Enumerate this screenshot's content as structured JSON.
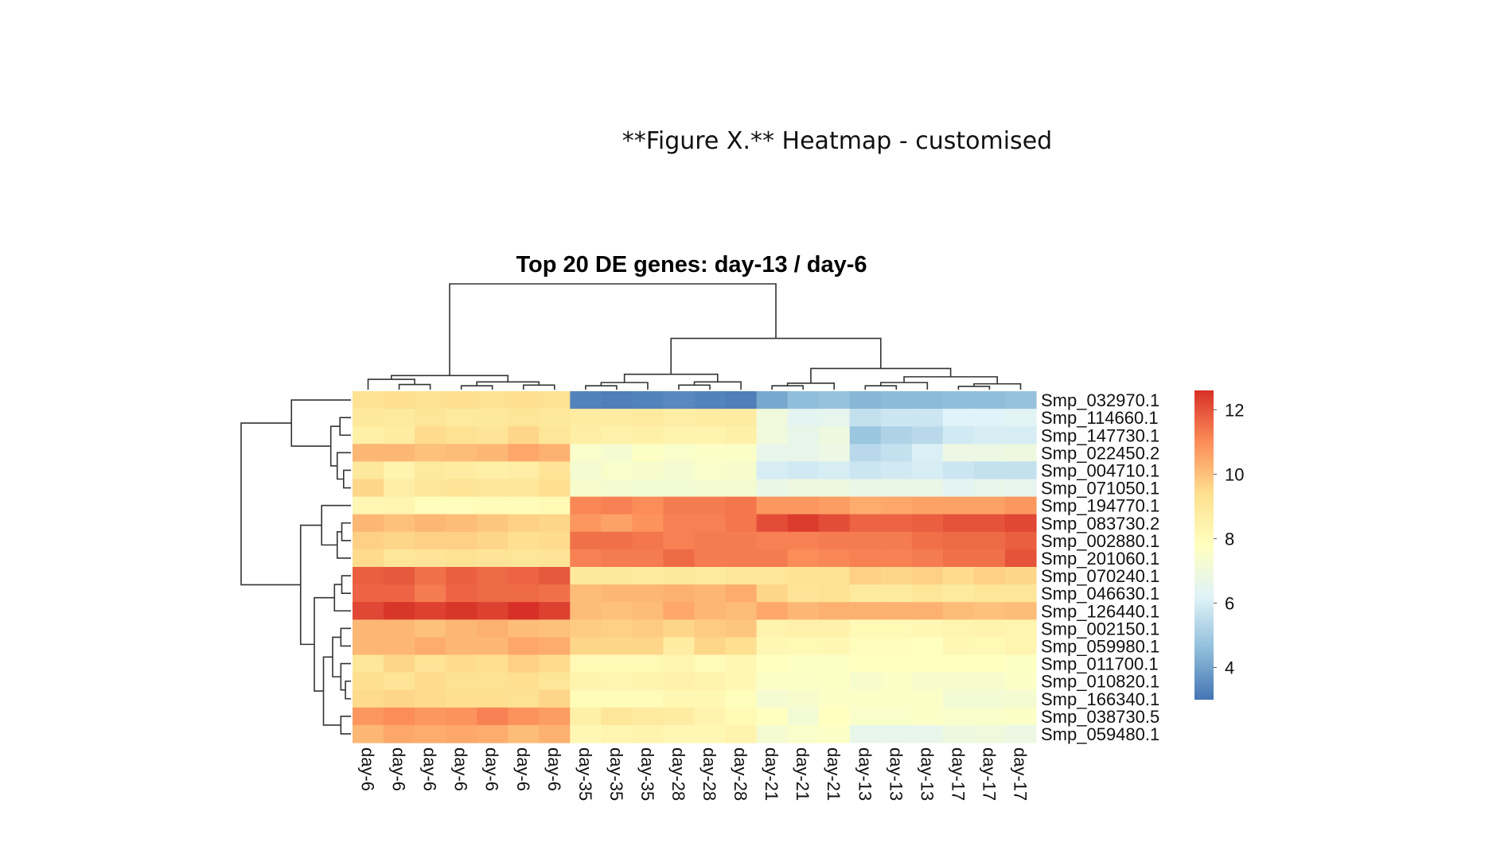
{
  "caption": "**Figure X.** Heatmap - customised",
  "chart_data": {
    "type": "heatmap",
    "title": "Top 20 DE genes: day-13 / day-6",
    "columns": [
      "day-6",
      "day-6",
      "day-6",
      "day-6",
      "day-6",
      "day-6",
      "day-6",
      "day-35",
      "day-35",
      "day-35",
      "day-28",
      "day-28",
      "day-28",
      "day-21",
      "day-21",
      "day-21",
      "day-13",
      "day-13",
      "day-13",
      "day-17",
      "day-17",
      "day-17"
    ],
    "rows": [
      "Smp_032970.1",
      "Smp_114660.1",
      "Smp_147730.1",
      "Smp_022450.2",
      "Smp_004710.1",
      "Smp_071050.1",
      "Smp_194770.1",
      "Smp_083730.2",
      "Smp_002880.1",
      "Smp_201060.1",
      "Smp_070240.1",
      "Smp_046630.1",
      "Smp_126440.1",
      "Smp_002150.1",
      "Smp_059980.1",
      "Smp_011700.1",
      "Smp_010820.1",
      "Smp_166340.1",
      "Smp_038730.5",
      "Smp_059480.1"
    ],
    "values": [
      [
        9.3,
        9.4,
        9.3,
        9.4,
        9.3,
        9.4,
        9.3,
        3.3,
        3.2,
        3.3,
        3.4,
        3.3,
        3.2,
        4.1,
        4.6,
        4.7,
        4.4,
        4.5,
        4.5,
        4.6,
        4.6,
        4.7
      ],
      [
        9.0,
        8.9,
        9.1,
        8.9,
        9.0,
        9.1,
        9.0,
        8.8,
        8.8,
        8.9,
        8.7,
        8.8,
        8.8,
        7.0,
        6.4,
        6.5,
        5.6,
        5.8,
        5.8,
        6.2,
        6.2,
        6.3
      ],
      [
        8.6,
        8.8,
        9.5,
        9.3,
        9.2,
        9.6,
        9.1,
        8.7,
        8.5,
        8.6,
        8.4,
        8.4,
        8.6,
        7.0,
        6.6,
        6.9,
        4.8,
        5.2,
        5.4,
        5.9,
        6.0,
        6.0
      ],
      [
        10.2,
        10.2,
        10.0,
        10.1,
        10.2,
        10.5,
        10.3,
        7.5,
        7.3,
        7.7,
        7.5,
        7.6,
        7.6,
        6.6,
        6.6,
        6.8,
        5.4,
        5.6,
        6.1,
        6.8,
        6.8,
        6.9
      ],
      [
        9.0,
        8.4,
        8.9,
        8.8,
        8.6,
        8.7,
        9.2,
        7.3,
        7.5,
        7.4,
        7.3,
        7.5,
        7.4,
        6.0,
        5.9,
        6.0,
        5.8,
        5.9,
        6.0,
        5.8,
        5.6,
        5.6
      ],
      [
        9.6,
        8.7,
        9.1,
        9.2,
        9.1,
        9.1,
        9.4,
        7.4,
        7.3,
        7.2,
        7.2,
        7.3,
        7.3,
        6.7,
        6.9,
        6.9,
        6.7,
        6.7,
        6.7,
        6.4,
        6.6,
        6.5
      ],
      [
        8.2,
        8.3,
        7.9,
        7.9,
        8.0,
        8.0,
        8.1,
        11.1,
        11.2,
        11.0,
        11.3,
        11.3,
        11.4,
        10.8,
        10.8,
        10.7,
        10.4,
        10.5,
        10.6,
        10.6,
        10.6,
        10.8
      ],
      [
        10.2,
        10.0,
        10.2,
        10.1,
        9.9,
        9.7,
        9.6,
        10.8,
        10.6,
        10.9,
        11.2,
        11.2,
        11.4,
        12.1,
        12.4,
        12.1,
        11.7,
        11.7,
        11.8,
        12.0,
        12.0,
        12.2
      ],
      [
        9.7,
        9.6,
        9.7,
        9.7,
        9.6,
        9.4,
        9.5,
        11.5,
        11.5,
        11.4,
        11.2,
        11.3,
        11.3,
        11.2,
        11.2,
        11.3,
        11.3,
        11.3,
        11.5,
        11.6,
        11.6,
        11.8
      ],
      [
        9.5,
        9.1,
        9.2,
        9.3,
        9.2,
        9.1,
        9.2,
        11.2,
        11.3,
        11.3,
        11.6,
        11.3,
        11.3,
        11.3,
        11.0,
        11.1,
        11.2,
        11.2,
        11.3,
        11.5,
        11.5,
        12.0
      ],
      [
        11.8,
        11.9,
        11.5,
        11.8,
        11.6,
        11.7,
        11.9,
        9.0,
        9.0,
        8.9,
        9.0,
        8.9,
        9.1,
        9.1,
        9.3,
        9.3,
        9.7,
        9.6,
        9.7,
        9.5,
        9.7,
        9.6
      ],
      [
        11.7,
        11.7,
        11.3,
        11.7,
        11.6,
        11.6,
        11.5,
        10.1,
        10.2,
        10.2,
        10.3,
        10.2,
        10.4,
        9.6,
        9.2,
        9.3,
        8.9,
        8.9,
        9.1,
        8.9,
        9.1,
        9.1
      ],
      [
        12.2,
        12.5,
        12.3,
        12.5,
        12.3,
        12.6,
        12.3,
        10.1,
        10.0,
        10.1,
        10.5,
        10.2,
        10.1,
        10.5,
        10.2,
        10.3,
        10.3,
        10.3,
        10.3,
        10.1,
        10.0,
        10.1
      ],
      [
        10.2,
        10.2,
        10.0,
        10.2,
        10.3,
        10.1,
        10.0,
        9.8,
        9.7,
        9.8,
        9.6,
        9.8,
        9.9,
        8.4,
        8.5,
        8.5,
        8.1,
        8.1,
        8.2,
        8.3,
        8.4,
        8.3
      ],
      [
        10.2,
        10.2,
        10.4,
        10.2,
        10.2,
        10.5,
        10.4,
        9.6,
        9.6,
        9.6,
        8.8,
        9.6,
        9.4,
        8.2,
        8.1,
        8.2,
        7.9,
        7.9,
        7.8,
        8.2,
        8.1,
        8.3
      ],
      [
        9.1,
        9.6,
        9.2,
        9.5,
        9.4,
        9.7,
        9.5,
        8.1,
        8.1,
        8.1,
        8.3,
        8.0,
        8.2,
        7.8,
        7.7,
        7.7,
        7.8,
        7.8,
        7.8,
        7.8,
        7.8,
        7.7
      ],
      [
        9.4,
        9.2,
        9.5,
        9.3,
        9.3,
        9.4,
        9.1,
        8.4,
        8.3,
        8.4,
        8.5,
        8.4,
        8.2,
        7.6,
        7.6,
        7.7,
        7.4,
        7.6,
        7.4,
        7.4,
        7.4,
        7.6
      ],
      [
        9.5,
        9.6,
        9.5,
        9.4,
        9.4,
        9.3,
        9.6,
        8.0,
        8.0,
        8.0,
        8.2,
        8.2,
        7.9,
        7.3,
        7.4,
        7.6,
        7.6,
        7.6,
        7.6,
        7.2,
        7.2,
        7.3
      ],
      [
        10.8,
        11.0,
        10.8,
        10.9,
        11.2,
        10.9,
        10.7,
        8.6,
        9.1,
        8.9,
        8.8,
        8.4,
        8.1,
        7.8,
        7.2,
        7.8,
        7.5,
        7.5,
        7.6,
        7.5,
        7.5,
        7.6
      ],
      [
        10.2,
        10.5,
        10.4,
        10.5,
        10.4,
        10.1,
        10.3,
        8.2,
        8.3,
        8.4,
        8.2,
        8.2,
        8.4,
        7.3,
        7.5,
        7.6,
        6.6,
        6.6,
        6.6,
        6.9,
        7.0,
        6.8
      ]
    ],
    "color_range": [
      3.0,
      12.6
    ],
    "colorscale": [
      "#4575b4",
      "#91bfdb",
      "#e0f3f8",
      "#ffffbf",
      "#fee090",
      "#fc8d59",
      "#d73027"
    ],
    "legend": {
      "ticks": [
        4,
        6,
        8,
        10,
        12
      ],
      "position": "right"
    }
  }
}
